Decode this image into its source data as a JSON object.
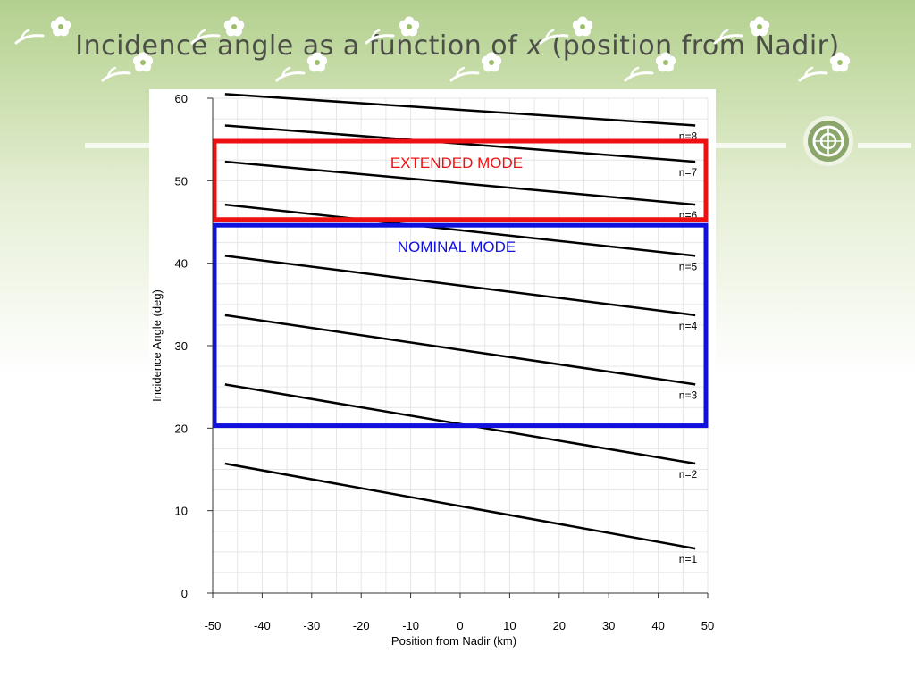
{
  "slide": {
    "title_prefix": "Incidence angle as a function of",
    "title_var": "x",
    "title_paren_open": "(",
    "title_suffix": "position from Nadir",
    "title_paren_close": ")"
  },
  "colors": {
    "extended_box": "#ee1111",
    "nominal_box": "#1111dd",
    "lines": "#000000",
    "background_top": "#b3d08f"
  },
  "icons": [
    "flower-icon",
    "emblem-icon"
  ],
  "chart_data": {
    "type": "line",
    "title": "",
    "xlabel": "Position from Nadir (km)",
    "ylabel": "Incidence Angle (deg)",
    "xlim": [
      -50,
      50
    ],
    "ylim": [
      0,
      60
    ],
    "x_ticks": [
      -50,
      -40,
      -30,
      -20,
      -10,
      0,
      10,
      20,
      30,
      40,
      50
    ],
    "y_ticks": [
      0,
      10,
      20,
      30,
      40,
      50,
      60
    ],
    "grid": true,
    "series": [
      {
        "name": "n=1",
        "x": [
          -47.5,
          47.5
        ],
        "y": [
          15.7,
          5.4
        ]
      },
      {
        "name": "n=2",
        "x": [
          -47.5,
          47.5
        ],
        "y": [
          25.3,
          15.7
        ]
      },
      {
        "name": "n=3",
        "x": [
          -47.5,
          47.5
        ],
        "y": [
          33.7,
          25.3
        ]
      },
      {
        "name": "n=4",
        "x": [
          -47.5,
          47.5
        ],
        "y": [
          40.9,
          33.7
        ]
      },
      {
        "name": "n=5",
        "x": [
          -47.5,
          47.5
        ],
        "y": [
          47.1,
          40.9
        ]
      },
      {
        "name": "n=6",
        "x": [
          -47.5,
          47.5
        ],
        "y": [
          52.3,
          47.1
        ]
      },
      {
        "name": "n=7",
        "x": [
          -47.5,
          47.5
        ],
        "y": [
          56.7,
          52.3
        ]
      },
      {
        "name": "n=8",
        "x": [
          -47.5,
          47.5
        ],
        "y": [
          60.5,
          56.7
        ]
      }
    ],
    "regions": [
      {
        "label": "EXTENDED MODE",
        "x_range": [
          -50,
          50
        ],
        "y_range": [
          45.3,
          54.8
        ],
        "color": "#ee1111"
      },
      {
        "label": "NOMINAL MODE",
        "x_range": [
          -50,
          50
        ],
        "y_range": [
          20.3,
          44.6
        ],
        "color": "#1111dd"
      }
    ]
  }
}
